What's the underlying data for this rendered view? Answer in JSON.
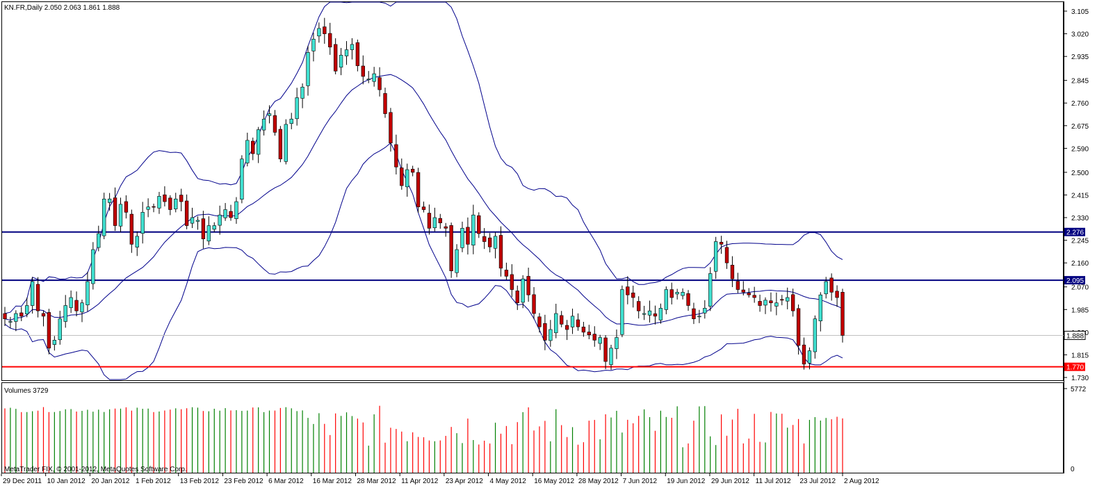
{
  "window": {
    "header": "KN.FR,Daily  2.050 2.063 1.861 1.888",
    "copyright": "MetaTrader FIX, © 2001-2012, MetaQuotes Software Corp.",
    "volume_label": "Volumes 3729"
  },
  "chart_data": {
    "type": "candlestick",
    "symbol": "KN.FR",
    "period": "Daily",
    "ohlc_last": {
      "open": 2.05,
      "high": 2.063,
      "low": 1.861,
      "close": 1.888
    },
    "price_axis": {
      "min": 1.7,
      "max": 3.12,
      "ticks": [
        "3.105",
        "3.020",
        "2.935",
        "2.845",
        "2.760",
        "2.675",
        "2.590",
        "2.500",
        "2.415",
        "2.330",
        "2.245",
        "2.160",
        "2.070",
        "1.985",
        "1.900",
        "1.815",
        "1.730"
      ]
    },
    "time_axis_labels": [
      "29 Dec 2011",
      "10 Jan 2012",
      "20 Jan 2012",
      "1 Feb 2012",
      "13 Feb 2012",
      "23 Feb 2012",
      "6 Mar 2012",
      "16 Mar 2012",
      "28 Mar 2012",
      "11 Apr 2012",
      "23 Apr 2012",
      "4 May 2012",
      "16 May 2012",
      "28 May 2012",
      "7 Jun 2012",
      "19 Jun 2012",
      "29 Jun 2012",
      "11 Jul 2012",
      "23 Jul 2012",
      "2 Aug 2012"
    ],
    "levels": [
      {
        "value": 2.276,
        "label": "2.276",
        "color": "#000080"
      },
      {
        "value": 2.095,
        "label": "2.095",
        "color": "#000080"
      },
      {
        "value": 1.77,
        "label": "1.770",
        "color": "#ff0000"
      }
    ],
    "current_price": {
      "value": 1.888,
      "label": "1.888"
    },
    "volume_axis": {
      "max_label": "5772",
      "min_label": "0",
      "max": 5772
    },
    "colors": {
      "bull": "#40e0d0",
      "bear": "#c00000",
      "bands": "#00008b",
      "vol_up": "#008000",
      "vol_down": "#ff0000"
    },
    "closes": [
      1.95,
      1.94,
      1.97,
      1.96,
      2.0,
      2.09,
      1.98,
      1.96,
      1.84,
      1.87,
      1.95,
      2.0,
      2.03,
      1.98,
      2.01,
      2.09,
      2.21,
      2.27,
      2.4,
      2.4,
      2.3,
      2.38,
      2.35,
      2.23,
      2.26,
      2.35,
      2.37,
      2.37,
      2.41,
      2.39,
      2.36,
      2.4,
      2.39,
      2.3,
      2.33,
      2.32,
      2.25,
      2.3,
      2.3,
      2.34,
      2.36,
      2.33,
      2.39,
      2.55,
      2.62,
      2.57,
      2.66,
      2.7,
      2.72,
      2.65,
      2.55,
      2.68,
      2.7,
      2.78,
      2.82,
      2.95,
      3.0,
      3.04,
      3.02,
      2.97,
      2.88,
      2.94,
      2.96,
      2.98,
      2.9,
      2.86,
      2.85,
      2.87,
      2.81,
      2.72,
      2.61,
      2.52,
      2.45,
      2.51,
      2.5,
      2.37,
      2.36,
      2.29,
      2.33,
      2.31,
      2.29,
      2.13,
      2.21,
      2.29,
      2.23,
      2.34,
      2.27,
      2.24,
      2.22,
      2.26,
      2.14,
      2.11,
      2.06,
      2.01,
      2.1,
      2.04,
      1.97,
      1.92,
      1.87,
      1.91,
      1.97,
      1.93,
      1.91,
      1.96,
      1.92,
      1.9,
      1.89,
      1.87,
      1.88,
      1.79,
      1.84,
      1.88,
      2.06,
      2.04,
      2.03,
      1.98,
      1.97,
      1.98,
      1.96,
      1.99,
      2.06,
      2.03,
      2.05,
      2.05,
      2.0,
      1.95,
      1.96,
      1.99,
      2.12,
      2.24,
      2.23,
      2.16,
      2.1,
      2.06,
      2.05,
      2.04,
      2.03,
      2.0,
      2.02,
      2.01,
      2.01,
      2.02,
      2.03,
      1.98,
      1.85,
      1.78,
      1.83,
      1.95,
      2.04,
      2.09,
      2.05,
      2.03,
      1.89
    ],
    "volume_levels": "relative bar heights shown in the lower volume pane"
  }
}
